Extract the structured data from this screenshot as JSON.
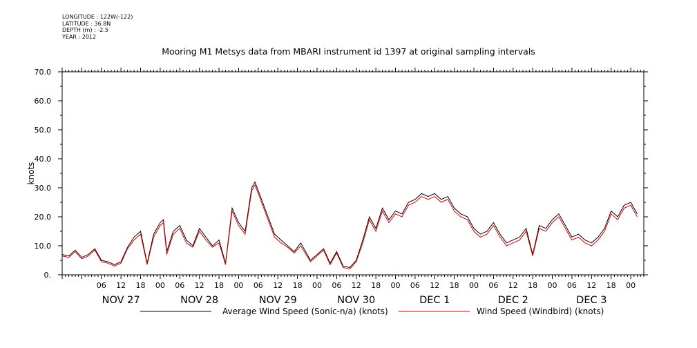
{
  "header": {
    "longitude": "LONGITUDE : 122W(-122)",
    "latitude": "LATITUDE : 36.8N",
    "depth": "DEPTH (m) : -2.5",
    "year": "YEAR : 2012"
  },
  "chart_data": {
    "type": "line",
    "title": "Mooring M1 Metsys data from MBARI instrument id 1397 at original sampling intervals",
    "ylabel": "knots",
    "ylim": [
      0,
      70
    ],
    "yticks": [
      "0.",
      "10.0",
      "20.0",
      "30.0",
      "40.0",
      "50.0",
      "60.0",
      "70.0"
    ],
    "x_range_hours_from_nov27_00": [
      -6,
      172
    ],
    "hour_ticks": [
      "06",
      "12",
      "18",
      "00",
      "06",
      "12",
      "18",
      "00",
      "06",
      "12",
      "18",
      "00",
      "06",
      "12",
      "18",
      "00",
      "06",
      "12",
      "18",
      "00",
      "06",
      "12",
      "18",
      "00",
      "06",
      "12",
      "18",
      "00"
    ],
    "day_labels": [
      "NOV 27",
      "NOV 28",
      "NOV 29",
      "NOV 30",
      "DEC  1",
      "DEC  2",
      "DEC  3"
    ],
    "grid": false,
    "legend_position": "bottom",
    "series": [
      {
        "name": "Average Wind Speed (Sonic-n/a) (knots)",
        "color": "#000000",
        "points": [
          [
            -6,
            7
          ],
          [
            -4,
            6.5
          ],
          [
            -2,
            8.5
          ],
          [
            0,
            6
          ],
          [
            2,
            7
          ],
          [
            4,
            9
          ],
          [
            6,
            5
          ],
          [
            8,
            4.5
          ],
          [
            10,
            3.5
          ],
          [
            12,
            4.5
          ],
          [
            14,
            9.5
          ],
          [
            16,
            13
          ],
          [
            18,
            15
          ],
          [
            20,
            4
          ],
          [
            22,
            14
          ],
          [
            24,
            18
          ],
          [
            25,
            19
          ],
          [
            26,
            8
          ],
          [
            28,
            15
          ],
          [
            30,
            17
          ],
          [
            32,
            12
          ],
          [
            34,
            10
          ],
          [
            36,
            16
          ],
          [
            38,
            13
          ],
          [
            40,
            10
          ],
          [
            42,
            12
          ],
          [
            44,
            4
          ],
          [
            46,
            23
          ],
          [
            48,
            18
          ],
          [
            50,
            15
          ],
          [
            52,
            30
          ],
          [
            53,
            32
          ],
          [
            55,
            26
          ],
          [
            57,
            20
          ],
          [
            59,
            14
          ],
          [
            61,
            12
          ],
          [
            63,
            10
          ],
          [
            65,
            8
          ],
          [
            67,
            11
          ],
          [
            70,
            5
          ],
          [
            72,
            7
          ],
          [
            74,
            9
          ],
          [
            76,
            4
          ],
          [
            78,
            8
          ],
          [
            80,
            3
          ],
          [
            82,
            2.5
          ],
          [
            84,
            5
          ],
          [
            86,
            12
          ],
          [
            88,
            20
          ],
          [
            90,
            16
          ],
          [
            92,
            23
          ],
          [
            94,
            19
          ],
          [
            96,
            22
          ],
          [
            98,
            21
          ],
          [
            100,
            25
          ],
          [
            102,
            26
          ],
          [
            104,
            28
          ],
          [
            106,
            27
          ],
          [
            108,
            28
          ],
          [
            110,
            26
          ],
          [
            112,
            27
          ],
          [
            114,
            23
          ],
          [
            116,
            21
          ],
          [
            118,
            20
          ],
          [
            120,
            16
          ],
          [
            122,
            14
          ],
          [
            124,
            15
          ],
          [
            126,
            18
          ],
          [
            128,
            14
          ],
          [
            130,
            11
          ],
          [
            132,
            12
          ],
          [
            134,
            13
          ],
          [
            136,
            16
          ],
          [
            138,
            7
          ],
          [
            140,
            17
          ],
          [
            142,
            16
          ],
          [
            144,
            19
          ],
          [
            146,
            21
          ],
          [
            148,
            17
          ],
          [
            150,
            13
          ],
          [
            152,
            14
          ],
          [
            154,
            12
          ],
          [
            156,
            11
          ],
          [
            158,
            13
          ],
          [
            160,
            16
          ],
          [
            162,
            22
          ],
          [
            164,
            20
          ],
          [
            166,
            24
          ],
          [
            168,
            25
          ],
          [
            170,
            21
          ]
        ]
      },
      {
        "name": "Wind Speed (Windbird) (knots)",
        "color": "#e00000",
        "points": [
          [
            -6,
            6.5
          ],
          [
            -4,
            6
          ],
          [
            -2,
            8
          ],
          [
            0,
            5.5
          ],
          [
            2,
            6.5
          ],
          [
            4,
            8.5
          ],
          [
            6,
            4.5
          ],
          [
            8,
            4
          ],
          [
            10,
            3
          ],
          [
            12,
            4
          ],
          [
            14,
            9
          ],
          [
            16,
            12
          ],
          [
            18,
            14
          ],
          [
            20,
            3.5
          ],
          [
            22,
            13
          ],
          [
            24,
            17
          ],
          [
            25,
            18
          ],
          [
            26,
            7
          ],
          [
            28,
            14
          ],
          [
            30,
            16
          ],
          [
            32,
            11
          ],
          [
            34,
            9.5
          ],
          [
            36,
            15
          ],
          [
            38,
            12
          ],
          [
            40,
            9.5
          ],
          [
            42,
            11
          ],
          [
            44,
            3.5
          ],
          [
            46,
            22
          ],
          [
            48,
            17
          ],
          [
            50,
            14
          ],
          [
            52,
            29
          ],
          [
            53,
            31
          ],
          [
            55,
            25
          ],
          [
            57,
            19
          ],
          [
            59,
            13
          ],
          [
            61,
            11
          ],
          [
            63,
            9.5
          ],
          [
            65,
            7.5
          ],
          [
            67,
            10
          ],
          [
            70,
            4.5
          ],
          [
            72,
            6.5
          ],
          [
            74,
            8.5
          ],
          [
            76,
            3.5
          ],
          [
            78,
            7.5
          ],
          [
            80,
            2.5
          ],
          [
            82,
            2
          ],
          [
            84,
            4.5
          ],
          [
            86,
            11
          ],
          [
            88,
            19
          ],
          [
            90,
            15
          ],
          [
            92,
            22
          ],
          [
            94,
            18
          ],
          [
            96,
            21
          ],
          [
            98,
            20
          ],
          [
            100,
            24
          ],
          [
            102,
            25
          ],
          [
            104,
            27
          ],
          [
            106,
            26
          ],
          [
            108,
            27
          ],
          [
            110,
            25
          ],
          [
            112,
            26
          ],
          [
            114,
            22
          ],
          [
            116,
            20
          ],
          [
            118,
            19
          ],
          [
            120,
            15
          ],
          [
            122,
            13
          ],
          [
            124,
            14
          ],
          [
            126,
            17
          ],
          [
            128,
            13
          ],
          [
            130,
            10
          ],
          [
            132,
            11
          ],
          [
            134,
            12
          ],
          [
            136,
            15
          ],
          [
            138,
            6.5
          ],
          [
            140,
            16
          ],
          [
            142,
            15
          ],
          [
            144,
            18
          ],
          [
            146,
            20
          ],
          [
            148,
            16
          ],
          [
            150,
            12
          ],
          [
            152,
            13
          ],
          [
            154,
            11
          ],
          [
            156,
            10
          ],
          [
            158,
            12
          ],
          [
            160,
            15
          ],
          [
            162,
            21
          ],
          [
            164,
            19
          ],
          [
            166,
            23
          ],
          [
            168,
            24
          ],
          [
            170,
            20
          ]
        ]
      }
    ]
  }
}
